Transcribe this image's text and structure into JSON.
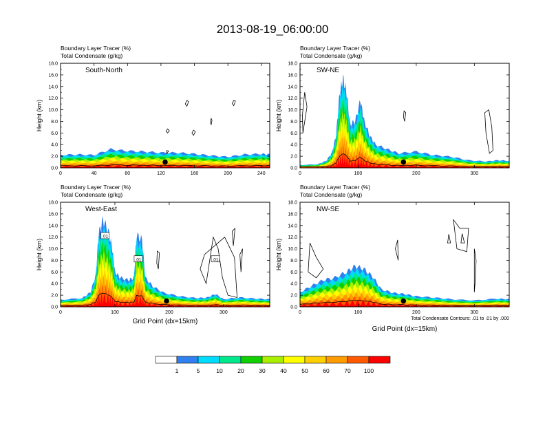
{
  "title": "2013-08-19_06:00:00",
  "chart_data": [
    {
      "type": "area",
      "panel_label": "South-North",
      "subtitle_1": "Boundary Layer Tracer   (%)",
      "subtitle_2": "Total Condensate   (g/kg)",
      "ylabel": "Height (km)",
      "xlabel": "",
      "xlim": [
        0,
        250
      ],
      "ylim": [
        0,
        18
      ],
      "xticks": [
        "0",
        "40",
        "80",
        "120",
        "160",
        "200",
        "240"
      ],
      "xtick_values": [
        0,
        40,
        80,
        120,
        160,
        200,
        240
      ],
      "yticks": [
        "0.0",
        "2.0",
        "4.0",
        "6.0",
        "8.0",
        "10.0",
        "12.0",
        "14.0",
        "16.0",
        "18.0"
      ],
      "marker_point": [
        125,
        1.0
      ],
      "tracer_top_km": [
        [
          0,
          2.2
        ],
        [
          20,
          2.3
        ],
        [
          40,
          2.2
        ],
        [
          60,
          3.2
        ],
        [
          80,
          2.9
        ],
        [
          100,
          2.8
        ],
        [
          120,
          2.6
        ],
        [
          140,
          2.6
        ],
        [
          160,
          2.4
        ],
        [
          180,
          2.1
        ],
        [
          200,
          1.9
        ],
        [
          220,
          2.3
        ],
        [
          240,
          2.4
        ],
        [
          250,
          2.3
        ]
      ],
      "condensate_contours": [
        [
          [
            127,
            2.4
          ],
          [
            129,
            2.9
          ],
          [
            127,
            3.0
          ],
          [
            126,
            2.6
          ]
        ],
        [
          [
            151,
            10.6
          ],
          [
            153,
            11.4
          ],
          [
            151,
            11.6
          ],
          [
            149,
            11.0
          ]
        ],
        [
          [
            128,
            6.0
          ],
          [
            130,
            6.4
          ],
          [
            128,
            6.7
          ],
          [
            126,
            6.3
          ]
        ],
        [
          [
            159,
            5.6
          ],
          [
            161,
            6.2
          ],
          [
            159,
            6.5
          ],
          [
            157,
            6.0
          ]
        ],
        [
          [
            207,
            10.7
          ],
          [
            209,
            11.5
          ],
          [
            207,
            11.6
          ],
          [
            205,
            11.1
          ]
        ],
        [
          [
            180,
            7.4
          ],
          [
            181,
            8.2
          ],
          [
            180,
            8.5
          ],
          [
            179,
            7.9
          ]
        ]
      ]
    },
    {
      "type": "area",
      "panel_label": "SW-NE",
      "subtitle_1": "Boundary Layer Tracer   (%)",
      "subtitle_2": "Total Condensate   (g/kg)",
      "ylabel": "Height (km)",
      "xlabel": "",
      "xlim": [
        0,
        360
      ],
      "ylim": [
        0,
        18
      ],
      "xticks": [
        "0",
        "100",
        "200",
        "300"
      ],
      "xtick_values": [
        0,
        100,
        200,
        300
      ],
      "yticks": [
        "0.0",
        "2.0",
        "4.0",
        "6.0",
        "8.0",
        "10.0",
        "12.0",
        "14.0",
        "16.0",
        "18.0"
      ],
      "marker_point": [
        178,
        1.0
      ],
      "tracer_top_km": [
        [
          0,
          0.5
        ],
        [
          30,
          0.6
        ],
        [
          45,
          1.2
        ],
        [
          55,
          2.6
        ],
        [
          62,
          5.6
        ],
        [
          68,
          12.6
        ],
        [
          74,
          15.4
        ],
        [
          80,
          13.0
        ],
        [
          86,
          7.5
        ],
        [
          95,
          8.0
        ],
        [
          104,
          11.6
        ],
        [
          110,
          8.2
        ],
        [
          120,
          5.5
        ],
        [
          130,
          4.0
        ],
        [
          150,
          3.2
        ],
        [
          170,
          2.5
        ],
        [
          200,
          2.8
        ],
        [
          230,
          2.2
        ],
        [
          260,
          1.9
        ],
        [
          290,
          1.3
        ],
        [
          320,
          1.1
        ],
        [
          340,
          1.3
        ],
        [
          360,
          1.2
        ]
      ],
      "condensate_contours": [
        [
          [
            5,
            6.0
          ],
          [
            12,
            10.5
          ],
          [
            8,
            13.0
          ],
          [
            4,
            9.0
          ]
        ],
        [
          [
            320,
            6.0
          ],
          [
            318,
            9.5
          ],
          [
            325,
            10.0
          ],
          [
            330,
            7.0
          ],
          [
            332,
            3.0
          ],
          [
            326,
            2.5
          ]
        ],
        [
          [
            180,
            8.0
          ],
          [
            182,
            9.5
          ],
          [
            179,
            9.8
          ],
          [
            178,
            8.8
          ]
        ]
      ]
    },
    {
      "type": "area",
      "panel_label": "West-East",
      "subtitle_1": "Boundary Layer Tracer   (%)",
      "subtitle_2": "Total Condensate   (g/kg)",
      "ylabel": "Height (km)",
      "xlabel": "Grid Point (dx=15km)",
      "xlim": [
        0,
        385
      ],
      "ylim": [
        0,
        18
      ],
      "xticks": [
        "0",
        "100",
        "200",
        "300"
      ],
      "xtick_values": [
        0,
        100,
        200,
        300
      ],
      "yticks": [
        "0.0",
        "2.0",
        "4.0",
        "6.0",
        "8.0",
        "10.0",
        "12.0",
        "14.0",
        "16.0",
        "18.0"
      ],
      "marker_point": [
        195,
        1.0
      ],
      "contour_labels": [
        ".01",
        ".01",
        ".01"
      ],
      "contour_label_points": [
        [
          82,
          12.2
        ],
        [
          143,
          8.2
        ],
        [
          285,
          8.2
        ]
      ],
      "tracer_top_km": [
        [
          0,
          1.2
        ],
        [
          40,
          1.5
        ],
        [
          55,
          2.5
        ],
        [
          65,
          5.5
        ],
        [
          70,
          12.5
        ],
        [
          78,
          15.0
        ],
        [
          88,
          13.0
        ],
        [
          95,
          10.0
        ],
        [
          100,
          6.0
        ],
        [
          110,
          5.0
        ],
        [
          125,
          4.6
        ],
        [
          135,
          5.0
        ],
        [
          140,
          12.3
        ],
        [
          150,
          11.5
        ],
        [
          156,
          5.0
        ],
        [
          170,
          3.5
        ],
        [
          190,
          2.4
        ],
        [
          220,
          1.8
        ],
        [
          250,
          1.5
        ],
        [
          270,
          1.6
        ],
        [
          285,
          2.2
        ],
        [
          300,
          1.3
        ],
        [
          330,
          1.6
        ],
        [
          360,
          1.4
        ],
        [
          385,
          1.3
        ]
      ],
      "condensate_contours": [
        [
          [
            265,
            9.0
          ],
          [
            257,
            6.5
          ],
          [
            268,
            4.0
          ],
          [
            281,
            12.0
          ],
          [
            290,
            10.0
          ],
          [
            298,
            5.0
          ],
          [
            308,
            2.0
          ],
          [
            325,
            1.6
          ],
          [
            320,
            8.5
          ],
          [
            302,
            12.0
          ]
        ],
        [
          [
            316,
            13.0
          ],
          [
            318,
            10.5
          ],
          [
            321,
            13.5
          ]
        ],
        [
          [
            330,
            9.0
          ],
          [
            332,
            6.0
          ],
          [
            335,
            10.0
          ]
        ],
        [
          [
            180,
            6.5
          ],
          [
            182,
            9.3
          ],
          [
            178,
            9.6
          ],
          [
            177,
            7.5
          ]
        ]
      ]
    },
    {
      "type": "area",
      "panel_label": "NW-SE",
      "subtitle_1": "Boundary Layer Tracer   (%)",
      "subtitle_2": "Total Condensate   (g/kg)",
      "ylabel": "Height (km)",
      "xlabel": "Grid Point (dx=15km)",
      "xlim": [
        0,
        360
      ],
      "ylim": [
        0,
        18
      ],
      "xticks": [
        "0",
        "100",
        "200",
        "300"
      ],
      "xtick_values": [
        0,
        100,
        200,
        300
      ],
      "yticks": [
        "0.0",
        "2.0",
        "4.0",
        "6.0",
        "8.0",
        "10.0",
        "12.0",
        "14.0",
        "16.0",
        "18.0"
      ],
      "marker_point": [
        178,
        1.0
      ],
      "note": "Total Condensate Contours: .01 to .01 by .000",
      "tracer_top_km": [
        [
          0,
          2.5
        ],
        [
          20,
          3.6
        ],
        [
          40,
          4.6
        ],
        [
          60,
          5.0
        ],
        [
          80,
          6.0
        ],
        [
          95,
          7.0
        ],
        [
          110,
          6.5
        ],
        [
          125,
          5.2
        ],
        [
          140,
          3.0
        ],
        [
          160,
          2.4
        ],
        [
          180,
          2.2
        ],
        [
          200,
          1.8
        ],
        [
          230,
          1.6
        ],
        [
          260,
          1.3
        ],
        [
          300,
          1.1
        ],
        [
          340,
          1.4
        ],
        [
          360,
          1.3
        ]
      ],
      "condensate_contours": [
        [
          [
            17,
            11.0
          ],
          [
            28,
            8.5
          ],
          [
            40,
            6.5
          ],
          [
            28,
            5.0
          ],
          [
            14,
            6.0
          ]
        ],
        [
          [
            264,
            15.0
          ],
          [
            275,
            13.5
          ],
          [
            290,
            13.5
          ],
          [
            287,
            9.5
          ],
          [
            270,
            10.0
          ]
        ],
        [
          [
            254,
            11.0
          ],
          [
            256,
            12.5
          ],
          [
            259,
            11.0
          ]
        ],
        [
          [
            164,
            10.0
          ],
          [
            168,
            11.5
          ],
          [
            169,
            8.0
          ]
        ],
        [
          [
            277,
            11.0
          ],
          [
            279,
            12.6
          ],
          [
            283,
            11.0
          ]
        ],
        [
          [
            300,
            10.0
          ],
          [
            303,
            8.0
          ],
          [
            302,
            5.0
          ],
          [
            300,
            2.5
          ]
        ]
      ]
    }
  ],
  "colorbar": {
    "labels": [
      "1",
      "5",
      "10",
      "20",
      "30",
      "40",
      "50",
      "60",
      "70",
      "100"
    ],
    "colors": [
      "#ffffff",
      "#3080f0",
      "#00dcff",
      "#00e88c",
      "#10d000",
      "#a8f000",
      "#ffff00",
      "#ffd000",
      "#ff9c00",
      "#ff5a00",
      "#ff0000"
    ]
  }
}
